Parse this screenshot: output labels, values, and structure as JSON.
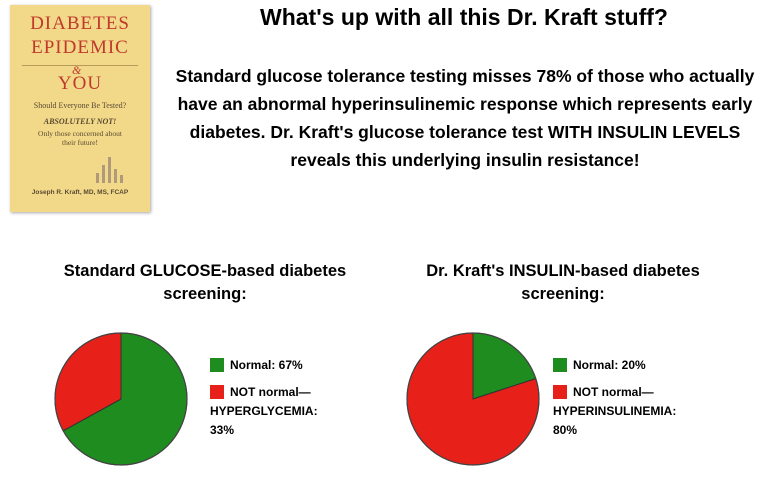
{
  "book": {
    "title_line1": "DIABETES",
    "title_line2": "EPIDEMIC",
    "ampersand": "&",
    "title_line3": "YOU",
    "question": "Should Everyone Be Tested?",
    "answer": "ABSOLUTELY NOT!",
    "subline": "Only those concerned about their future!",
    "author": "Joseph R. Kraft, MD, MS, FCAP"
  },
  "headline": "What's up with all this Dr. Kraft stuff?",
  "intro": "Standard glucose tolerance testing misses 78% of those who actually have an abnormal hyperinsulinemic response which represents early diabetes.  Dr. Kraft's glucose tolerance test WITH INSULIN LEVELS reveals this underlying insulin resistance!",
  "colors": {
    "normal": "#1f8c1f",
    "abnormal": "#e8201a"
  },
  "chart_data": [
    {
      "type": "pie",
      "title": "Standard GLUCOSE-based diabetes screening:",
      "slices": [
        {
          "label": "Normal:  67%",
          "value": 67,
          "color": "#1f8c1f"
        },
        {
          "label_line1": "NOT normal—",
          "label_line2": "HYPERGLYCEMIA:",
          "label_line3": "33%",
          "value": 33,
          "color": "#e8201a"
        }
      ]
    },
    {
      "type": "pie",
      "title": "Dr. Kraft's INSULIN-based diabetes screening:",
      "slices": [
        {
          "label": "Normal:  20%",
          "value": 20,
          "color": "#1f8c1f"
        },
        {
          "label_line1": "NOT normal—",
          "label_line2": "HYPERINSULINEMIA:",
          "label_line3": "80%",
          "value": 80,
          "color": "#e8201a"
        }
      ]
    }
  ]
}
